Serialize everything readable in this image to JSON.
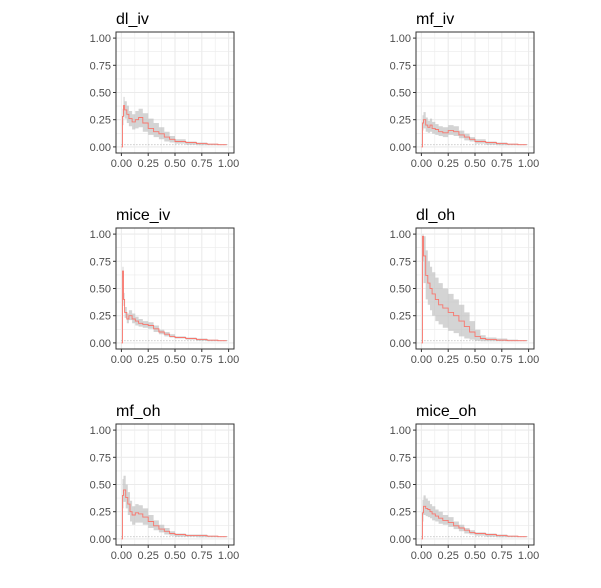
{
  "chart_data": [
    {
      "type": "line",
      "title": "dl_iv",
      "xlim": [
        0,
        1
      ],
      "ylim": [
        0,
        1
      ],
      "x_ticks": [
        "0.00",
        "0.25",
        "0.50",
        "0.75",
        "1.00"
      ],
      "y_ticks": [
        "0.00",
        "0.25",
        "0.50",
        "0.75",
        "1.00"
      ],
      "grid": true,
      "legend": "none",
      "baseline": 0.02,
      "series": [
        {
          "x": [
            0.0,
            0.01,
            0.02,
            0.03,
            0.05,
            0.07,
            0.1,
            0.13,
            0.16,
            0.2,
            0.25,
            0.3,
            0.35,
            0.4,
            0.45,
            0.5,
            0.6,
            0.7,
            0.8,
            0.9,
            0.98
          ],
          "y": [
            0.0,
            0.28,
            0.38,
            0.34,
            0.3,
            0.26,
            0.23,
            0.25,
            0.27,
            0.22,
            0.17,
            0.14,
            0.12,
            0.09,
            0.07,
            0.05,
            0.04,
            0.03,
            0.025,
            0.02,
            0.02
          ],
          "lower": [
            0.0,
            0.2,
            0.28,
            0.26,
            0.22,
            0.19,
            0.16,
            0.17,
            0.18,
            0.14,
            0.11,
            0.09,
            0.07,
            0.05,
            0.04,
            0.03,
            0.02,
            0.015,
            0.015,
            0.015,
            0.015
          ],
          "upper": [
            0.0,
            0.35,
            0.46,
            0.42,
            0.38,
            0.33,
            0.3,
            0.33,
            0.35,
            0.31,
            0.26,
            0.22,
            0.18,
            0.14,
            0.1,
            0.07,
            0.05,
            0.04,
            0.03,
            0.025,
            0.025
          ]
        }
      ]
    },
    {
      "type": "line",
      "title": "mf_iv",
      "xlim": [
        0,
        1
      ],
      "ylim": [
        0,
        1
      ],
      "x_ticks": [
        "0.00",
        "0.25",
        "0.50",
        "0.75",
        "1.00"
      ],
      "y_ticks": [
        "0.00",
        "0.25",
        "0.50",
        "0.75",
        "1.00"
      ],
      "grid": true,
      "legend": "none",
      "baseline": 0.02,
      "series": [
        {
          "x": [
            0.0,
            0.01,
            0.02,
            0.04,
            0.06,
            0.08,
            0.1,
            0.13,
            0.16,
            0.2,
            0.25,
            0.3,
            0.35,
            0.4,
            0.45,
            0.5,
            0.6,
            0.7,
            0.8,
            0.9,
            0.98
          ],
          "y": [
            0.0,
            0.22,
            0.25,
            0.2,
            0.18,
            0.2,
            0.17,
            0.16,
            0.14,
            0.13,
            0.15,
            0.14,
            0.11,
            0.09,
            0.07,
            0.05,
            0.04,
            0.03,
            0.025,
            0.02,
            0.02
          ],
          "lower": [
            0.0,
            0.15,
            0.17,
            0.14,
            0.13,
            0.14,
            0.12,
            0.11,
            0.1,
            0.09,
            0.11,
            0.1,
            0.08,
            0.06,
            0.05,
            0.03,
            0.02,
            0.015,
            0.015,
            0.015,
            0.015
          ],
          "upper": [
            0.0,
            0.29,
            0.32,
            0.27,
            0.24,
            0.26,
            0.23,
            0.21,
            0.19,
            0.18,
            0.2,
            0.19,
            0.15,
            0.12,
            0.09,
            0.07,
            0.05,
            0.04,
            0.03,
            0.025,
            0.025
          ]
        }
      ]
    },
    {
      "type": "line",
      "title": "mice_iv",
      "xlim": [
        0,
        1
      ],
      "ylim": [
        0,
        1
      ],
      "x_ticks": [
        "0.00",
        "0.25",
        "0.50",
        "0.75",
        "1.00"
      ],
      "y_ticks": [
        "0.00",
        "0.25",
        "0.50",
        "0.75",
        "1.00"
      ],
      "grid": true,
      "legend": "none",
      "baseline": 0.02,
      "series": [
        {
          "x": [
            0.0,
            0.01,
            0.02,
            0.03,
            0.05,
            0.07,
            0.1,
            0.13,
            0.16,
            0.2,
            0.25,
            0.3,
            0.35,
            0.4,
            0.45,
            0.5,
            0.6,
            0.7,
            0.8,
            0.9,
            0.98
          ],
          "y": [
            0.0,
            0.66,
            0.4,
            0.28,
            0.22,
            0.25,
            0.22,
            0.2,
            0.18,
            0.17,
            0.16,
            0.13,
            0.1,
            0.08,
            0.06,
            0.05,
            0.04,
            0.03,
            0.025,
            0.02,
            0.02
          ],
          "lower": [
            0.0,
            0.6,
            0.34,
            0.23,
            0.18,
            0.21,
            0.18,
            0.16,
            0.15,
            0.14,
            0.13,
            0.1,
            0.08,
            0.06,
            0.05,
            0.04,
            0.03,
            0.02,
            0.015,
            0.015,
            0.015
          ],
          "upper": [
            0.0,
            0.7,
            0.46,
            0.33,
            0.27,
            0.3,
            0.27,
            0.24,
            0.22,
            0.2,
            0.19,
            0.16,
            0.12,
            0.1,
            0.08,
            0.06,
            0.05,
            0.04,
            0.03,
            0.025,
            0.025
          ]
        }
      ]
    },
    {
      "type": "line",
      "title": "dl_oh",
      "xlim": [
        0,
        1
      ],
      "ylim": [
        0,
        1
      ],
      "x_ticks": [
        "0.00",
        "0.25",
        "0.50",
        "0.75",
        "1.00"
      ],
      "y_ticks": [
        "0.00",
        "0.25",
        "0.50",
        "0.75",
        "1.00"
      ],
      "grid": true,
      "legend": "none",
      "baseline": 0.02,
      "series": [
        {
          "x": [
            0.0,
            0.01,
            0.02,
            0.04,
            0.06,
            0.08,
            0.1,
            0.13,
            0.16,
            0.2,
            0.25,
            0.3,
            0.35,
            0.4,
            0.45,
            0.5,
            0.55,
            0.6,
            0.7,
            0.8,
            0.9,
            0.98
          ],
          "y": [
            0.0,
            0.98,
            0.8,
            0.62,
            0.55,
            0.5,
            0.45,
            0.4,
            0.35,
            0.32,
            0.28,
            0.25,
            0.2,
            0.15,
            0.1,
            0.06,
            0.04,
            0.03,
            0.025,
            0.02,
            0.02,
            0.02
          ],
          "lower": [
            0.0,
            0.75,
            0.55,
            0.4,
            0.35,
            0.3,
            0.25,
            0.2,
            0.17,
            0.14,
            0.11,
            0.09,
            0.06,
            0.04,
            0.03,
            0.02,
            0.015,
            0.015,
            0.015,
            0.015,
            0.015,
            0.015
          ],
          "upper": [
            0.0,
            1.0,
            0.98,
            0.85,
            0.75,
            0.7,
            0.65,
            0.6,
            0.55,
            0.5,
            0.45,
            0.4,
            0.35,
            0.28,
            0.2,
            0.12,
            0.07,
            0.05,
            0.04,
            0.03,
            0.025,
            0.025
          ]
        }
      ]
    },
    {
      "type": "line",
      "title": "mf_oh",
      "xlim": [
        0,
        1
      ],
      "ylim": [
        0,
        1
      ],
      "x_ticks": [
        "0.00",
        "0.25",
        "0.50",
        "0.75",
        "1.00"
      ],
      "y_ticks": [
        "0.00",
        "0.25",
        "0.50",
        "0.75",
        "1.00"
      ],
      "grid": true,
      "legend": "none",
      "baseline": 0.02,
      "series": [
        {
          "x": [
            0.0,
            0.01,
            0.02,
            0.04,
            0.06,
            0.08,
            0.1,
            0.13,
            0.16,
            0.2,
            0.25,
            0.3,
            0.35,
            0.4,
            0.45,
            0.5,
            0.6,
            0.7,
            0.8,
            0.9,
            0.98
          ],
          "y": [
            0.0,
            0.4,
            0.45,
            0.38,
            0.32,
            0.25,
            0.22,
            0.24,
            0.23,
            0.2,
            0.16,
            0.12,
            0.09,
            0.07,
            0.05,
            0.04,
            0.03,
            0.03,
            0.025,
            0.02,
            0.02
          ],
          "lower": [
            0.0,
            0.28,
            0.34,
            0.28,
            0.22,
            0.16,
            0.13,
            0.15,
            0.15,
            0.13,
            0.1,
            0.08,
            0.06,
            0.04,
            0.03,
            0.02,
            0.02,
            0.015,
            0.015,
            0.015,
            0.015
          ],
          "upper": [
            0.0,
            0.55,
            0.58,
            0.5,
            0.43,
            0.35,
            0.3,
            0.32,
            0.31,
            0.28,
            0.22,
            0.17,
            0.13,
            0.1,
            0.07,
            0.05,
            0.04,
            0.04,
            0.03,
            0.025,
            0.025
          ]
        }
      ]
    },
    {
      "type": "line",
      "title": "mice_oh",
      "xlim": [
        0,
        1
      ],
      "ylim": [
        0,
        1
      ],
      "x_ticks": [
        "0.00",
        "0.25",
        "0.50",
        "0.75",
        "1.00"
      ],
      "y_ticks": [
        "0.00",
        "0.25",
        "0.50",
        "0.75",
        "1.00"
      ],
      "grid": true,
      "legend": "none",
      "baseline": 0.02,
      "series": [
        {
          "x": [
            0.0,
            0.01,
            0.02,
            0.04,
            0.06,
            0.08,
            0.1,
            0.13,
            0.16,
            0.2,
            0.25,
            0.3,
            0.35,
            0.4,
            0.45,
            0.5,
            0.6,
            0.7,
            0.8,
            0.9,
            0.98
          ],
          "y": [
            0.0,
            0.24,
            0.3,
            0.28,
            0.27,
            0.25,
            0.23,
            0.21,
            0.19,
            0.17,
            0.15,
            0.12,
            0.1,
            0.08,
            0.06,
            0.05,
            0.04,
            0.03,
            0.025,
            0.02,
            0.02
          ],
          "lower": [
            0.0,
            0.16,
            0.22,
            0.21,
            0.2,
            0.19,
            0.17,
            0.16,
            0.14,
            0.13,
            0.11,
            0.09,
            0.07,
            0.05,
            0.04,
            0.03,
            0.02,
            0.015,
            0.015,
            0.015,
            0.015
          ],
          "upper": [
            0.0,
            0.36,
            0.4,
            0.37,
            0.35,
            0.32,
            0.3,
            0.27,
            0.25,
            0.22,
            0.2,
            0.16,
            0.13,
            0.1,
            0.08,
            0.06,
            0.05,
            0.04,
            0.03,
            0.025,
            0.025
          ]
        }
      ]
    }
  ],
  "colors": {
    "line": "#f8766d",
    "ribbon": "#bdbdbd",
    "grid": "#ebebeb",
    "border": "#333333",
    "baseline": "#999999"
  }
}
